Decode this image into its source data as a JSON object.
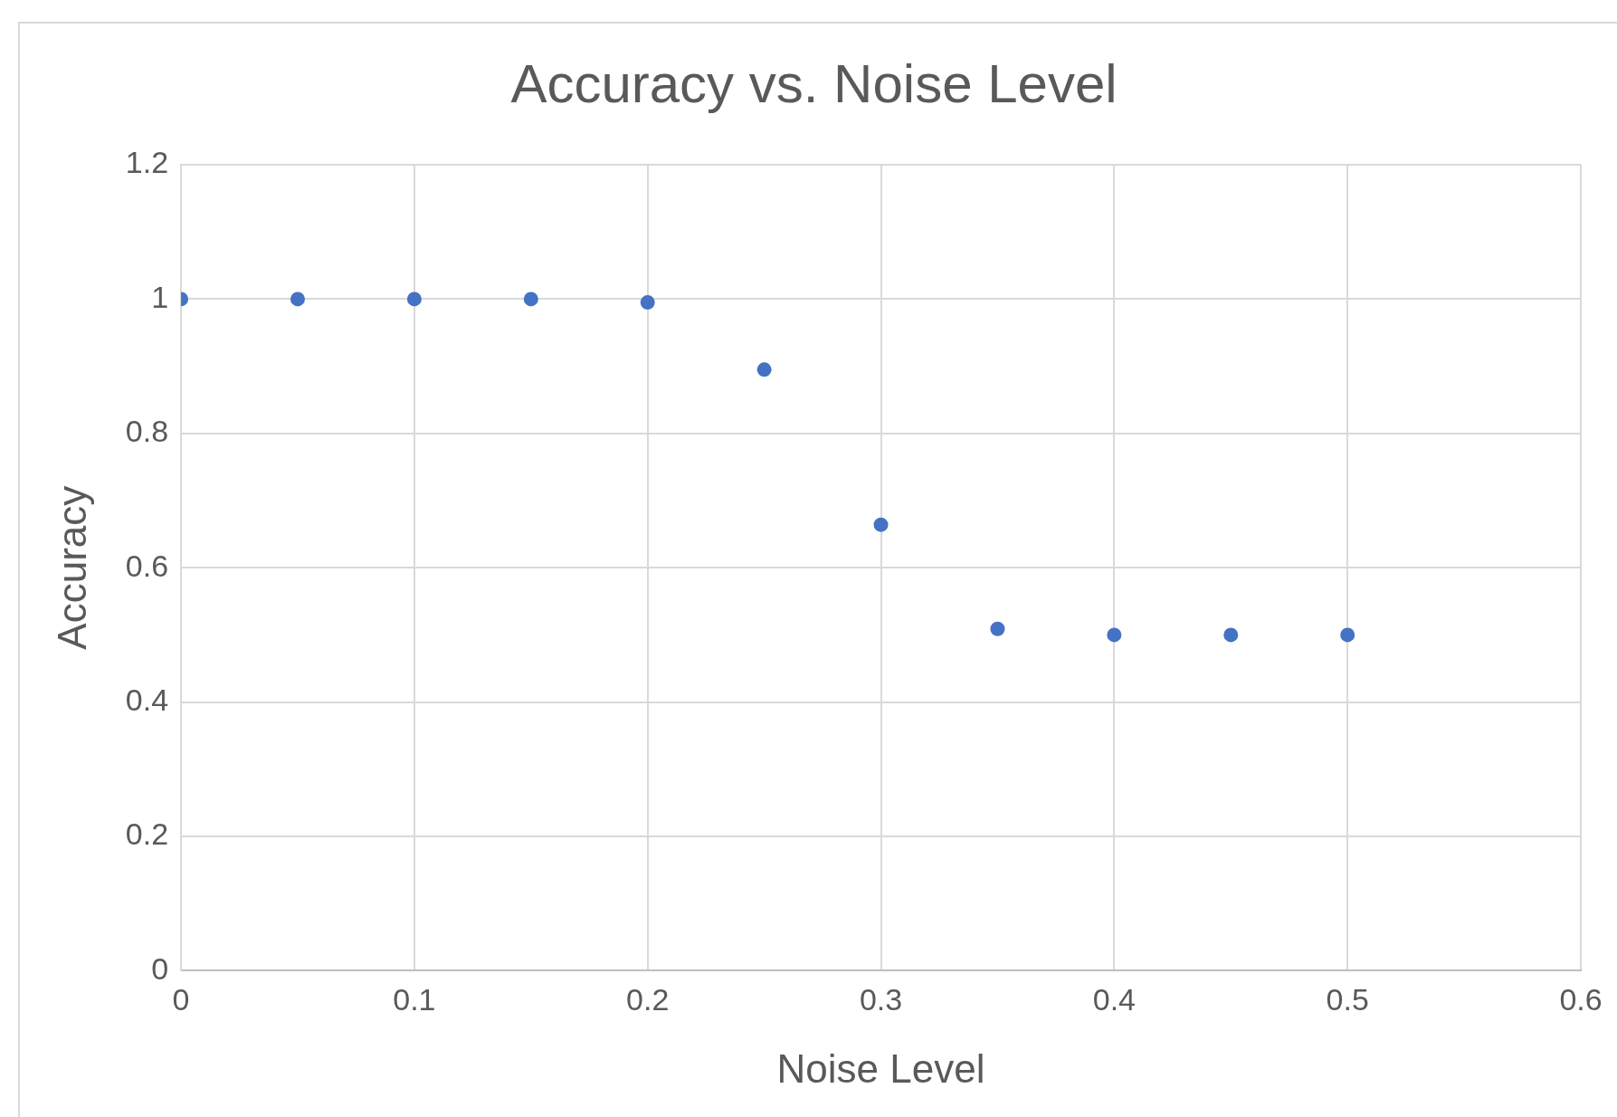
{
  "chart_data": {
    "type": "scatter",
    "title": "Accuracy vs. Noise Level",
    "xlabel": "Noise Level",
    "ylabel": "Accuracy",
    "x": [
      0,
      0.05,
      0.1,
      0.15,
      0.2,
      0.25,
      0.3,
      0.35,
      0.4,
      0.45,
      0.5
    ],
    "series": [
      {
        "color": "#4472c4",
        "values": [
          1,
          1,
          1,
          1,
          0.995,
          0.895,
          0.664,
          0.509,
          0.5,
          0.5,
          0.5
        ]
      }
    ],
    "xlim": [
      0,
      0.6
    ],
    "xticks": [
      0,
      0.1,
      0.2,
      0.3,
      0.4,
      0.5,
      0.6
    ],
    "ylim": [
      0,
      1.2
    ],
    "yticks": [
      0,
      0.2,
      0.4,
      0.6,
      0.8,
      1,
      1.2
    ],
    "grid": true,
    "legend": false,
    "marker": "circle"
  }
}
